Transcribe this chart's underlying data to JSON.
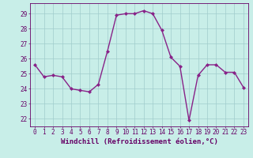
{
  "x": [
    0,
    1,
    2,
    3,
    4,
    5,
    6,
    7,
    8,
    9,
    10,
    11,
    12,
    13,
    14,
    15,
    16,
    17,
    18,
    19,
    20,
    21,
    22,
    23
  ],
  "y": [
    25.6,
    24.8,
    24.9,
    24.8,
    24.0,
    23.9,
    23.8,
    24.3,
    26.5,
    28.9,
    29.0,
    29.0,
    29.2,
    29.0,
    27.9,
    26.1,
    25.5,
    21.9,
    24.9,
    25.6,
    25.6,
    25.1,
    25.1,
    24.1
  ],
  "line_color": "#882288",
  "marker": "D",
  "markersize": 2.0,
  "linewidth": 1.0,
  "bg_color": "#C8EEE8",
  "grid_color": "#A0CCCC",
  "xlabel": "Windchill (Refroidissement éolien,°C)",
  "ylabel": "",
  "xlim": [
    -0.5,
    23.5
  ],
  "ylim": [
    21.5,
    29.7
  ],
  "yticks": [
    22,
    23,
    24,
    25,
    26,
    27,
    28,
    29
  ],
  "xticks": [
    0,
    1,
    2,
    3,
    4,
    5,
    6,
    7,
    8,
    9,
    10,
    11,
    12,
    13,
    14,
    15,
    16,
    17,
    18,
    19,
    20,
    21,
    22,
    23
  ],
  "tick_color": "#660066",
  "tick_fontsize": 5.5,
  "xlabel_fontsize": 6.5,
  "xlabel_color": "#660066",
  "axis_color": "#660066"
}
